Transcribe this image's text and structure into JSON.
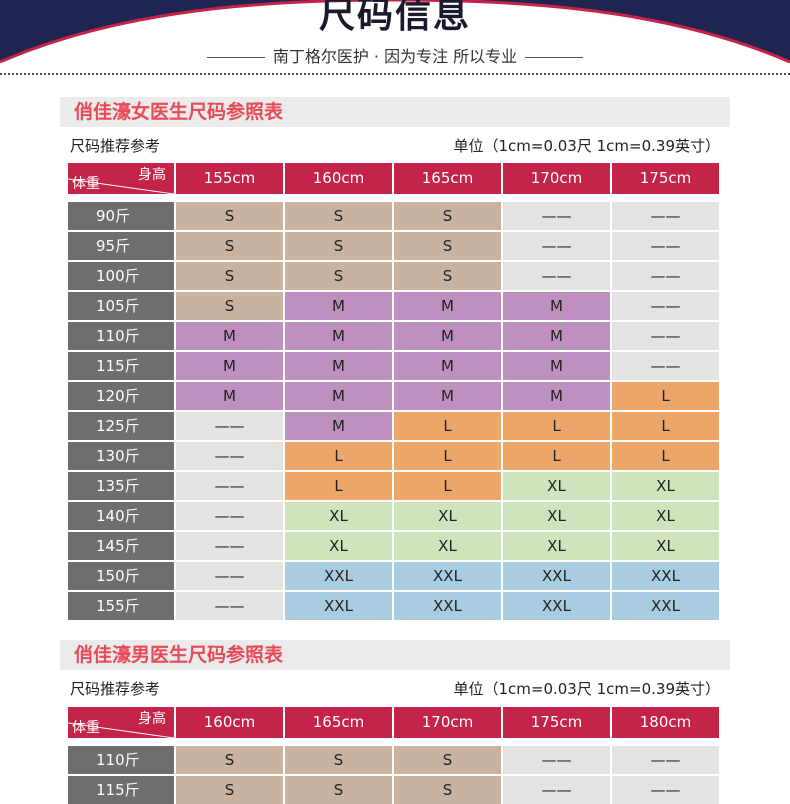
{
  "header": {
    "title": "尺码信息",
    "slogan": "南丁格尔医护 · 因为专注 所以专业",
    "colors": {
      "navy": "#1f2550",
      "accent": "#c42448"
    }
  },
  "sections": [
    {
      "title": "俏佳濠女医生尺码参照表",
      "subtitle_left": "尺码推荐参考",
      "unit_note": "单位（1cm=0.03尺 1cm=0.39英寸）",
      "corner_height": "身高",
      "corner_weight": "体重",
      "heights": [
        "155cm",
        "160cm",
        "165cm",
        "170cm",
        "175cm"
      ],
      "rows": [
        {
          "weight": "90斤",
          "sizes": [
            "S",
            "S",
            "S",
            "——",
            "——"
          ]
        },
        {
          "weight": "95斤",
          "sizes": [
            "S",
            "S",
            "S",
            "——",
            "——"
          ]
        },
        {
          "weight": "100斤",
          "sizes": [
            "S",
            "S",
            "S",
            "——",
            "——"
          ]
        },
        {
          "weight": "105斤",
          "sizes": [
            "S",
            "M",
            "M",
            "M",
            "——"
          ]
        },
        {
          "weight": "110斤",
          "sizes": [
            "M",
            "M",
            "M",
            "M",
            "——"
          ]
        },
        {
          "weight": "115斤",
          "sizes": [
            "M",
            "M",
            "M",
            "M",
            "——"
          ]
        },
        {
          "weight": "120斤",
          "sizes": [
            "M",
            "M",
            "M",
            "M",
            "L"
          ]
        },
        {
          "weight": "125斤",
          "sizes": [
            "——",
            "M",
            "L",
            "L",
            "L"
          ]
        },
        {
          "weight": "130斤",
          "sizes": [
            "——",
            "L",
            "L",
            "L",
            "L"
          ]
        },
        {
          "weight": "135斤",
          "sizes": [
            "——",
            "L",
            "L",
            "XL",
            "XL"
          ]
        },
        {
          "weight": "140斤",
          "sizes": [
            "——",
            "XL",
            "XL",
            "XL",
            "XL"
          ]
        },
        {
          "weight": "145斤",
          "sizes": [
            "——",
            "XL",
            "XL",
            "XL",
            "XL"
          ]
        },
        {
          "weight": "150斤",
          "sizes": [
            "——",
            "XXL",
            "XXL",
            "XXL",
            "XXL"
          ]
        },
        {
          "weight": "155斤",
          "sizes": [
            "——",
            "XXL",
            "XXL",
            "XXL",
            "XXL"
          ]
        }
      ]
    },
    {
      "title": "俏佳濠男医生尺码参照表",
      "subtitle_left": "尺码推荐参考",
      "unit_note": "单位（1cm=0.03尺 1cm=0.39英寸）",
      "corner_height": "身高",
      "corner_weight": "体重",
      "heights": [
        "160cm",
        "165cm",
        "170cm",
        "175cm",
        "180cm"
      ],
      "rows": [
        {
          "weight": "110斤",
          "sizes": [
            "S",
            "S",
            "S",
            "——",
            "——"
          ]
        },
        {
          "weight": "115斤",
          "sizes": [
            "S",
            "S",
            "S",
            "——",
            "——"
          ]
        }
      ]
    }
  ],
  "size_colors": {
    "S": "#c9b2a0",
    "M": "#bf90bf",
    "L": "#eda669",
    "XL": "#cfe3bd",
    "XXL": "#a8cce0",
    "none": "#e3e3e1"
  }
}
